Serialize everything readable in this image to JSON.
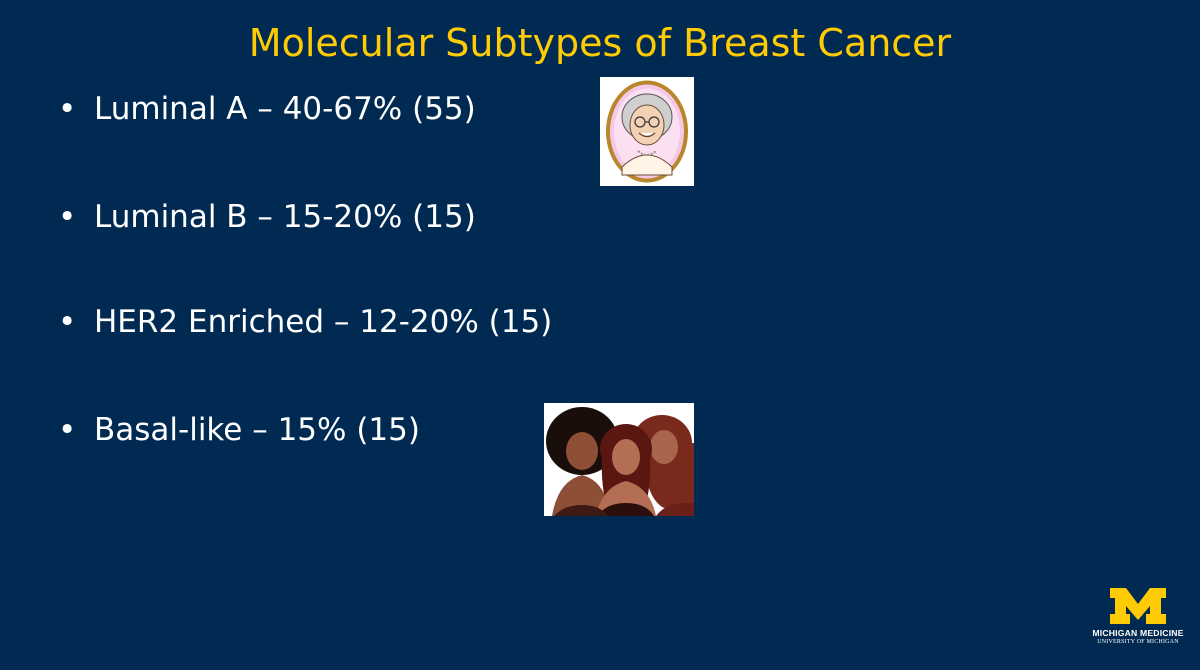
{
  "slide": {
    "title": "Molecular Subtypes of Breast Cancer",
    "bullets": [
      {
        "marker": "•",
        "text": "Luminal A – 40-67% (55)"
      },
      {
        "marker": "•",
        "text": "Luminal B – 15-20% (15)"
      },
      {
        "marker": "•",
        "text": "HER2 Enriched – 12-20% (15)"
      },
      {
        "marker": "•",
        "text": "Basal-like – 15% (15)"
      }
    ],
    "logo": {
      "name": "MICHIGAN MEDICINE",
      "subtitle": "UNIVERSITY OF MICHIGAN"
    }
  },
  "colors": {
    "background": "#012a52",
    "title": "#ffcb05",
    "text": "#ffffff",
    "logo_maize": "#ffcb05"
  },
  "images": {
    "top": "elderly-woman-portrait-clipart",
    "bottom": "group-of-women-clipart"
  }
}
